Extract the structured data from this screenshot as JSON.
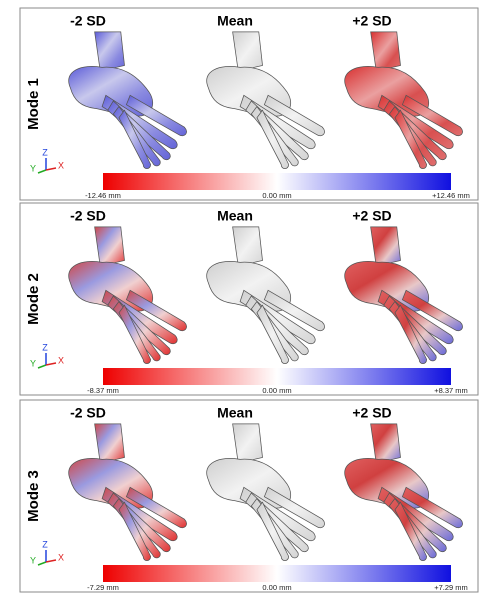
{
  "panels": [
    {
      "label": "Mode 1",
      "columns": [
        "-2 SD",
        "Mean",
        "+2 SD"
      ],
      "axes": [
        "Y",
        "Z",
        "X"
      ],
      "scale": [
        "-12.46 mm",
        "0.00 mm",
        "+12.46 mm"
      ]
    },
    {
      "label": "Mode 2",
      "columns": [
        "-2 SD",
        "Mean",
        "+2 SD"
      ],
      "axes": [
        "Y",
        "Z",
        "X"
      ],
      "scale": [
        "-8.37 mm",
        "0.00 mm",
        "+8.37 mm"
      ]
    },
    {
      "label": "Mode 3",
      "columns": [
        "-2 SD",
        "Mean",
        "+2 SD"
      ],
      "axes": [
        "Y",
        "Z",
        "X"
      ],
      "scale": [
        "-7.29 mm",
        "0.00 mm",
        "+7.29 mm"
      ]
    }
  ]
}
